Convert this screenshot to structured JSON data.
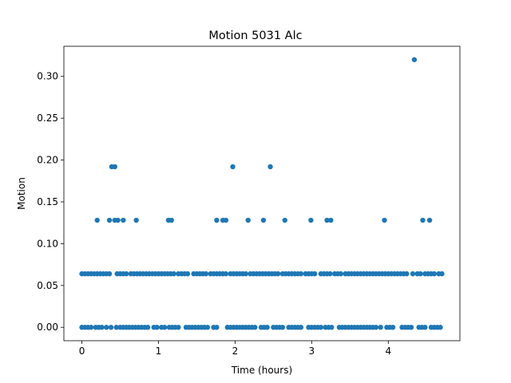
{
  "chart_data": {
    "type": "scatter",
    "title": "Motion 5031 Alc",
    "xlabel": "Time (hours)",
    "ylabel": "Motion",
    "xlim": [
      -0.235,
      4.935
    ],
    "ylim": [
      -0.016,
      0.336
    ],
    "xticks": [
      0,
      1,
      2,
      3,
      4
    ],
    "xtick_labels": [
      "0",
      "1",
      "2",
      "3",
      "4"
    ],
    "yticks": [
      0.0,
      0.05,
      0.1,
      0.15,
      0.2,
      0.25,
      0.3
    ],
    "ytick_labels": [
      "0.00",
      "0.05",
      "0.10",
      "0.15",
      "0.20",
      "0.25",
      "0.30"
    ],
    "marker_color": "#1f77b4",
    "grid": false,
    "series": [
      {
        "name": "Motion",
        "points": [
          [
            0.39,
            0.192
          ],
          [
            0.43,
            0.192
          ],
          [
            1.97,
            0.192
          ],
          [
            2.46,
            0.192
          ],
          [
            4.34,
            0.32
          ],
          [
            0.2,
            0.128
          ],
          [
            0.36,
            0.128
          ],
          [
            0.43,
            0.128
          ],
          [
            0.47,
            0.128
          ],
          [
            0.54,
            0.128
          ],
          [
            0.71,
            0.128
          ],
          [
            1.13,
            0.128
          ],
          [
            1.17,
            0.128
          ],
          [
            1.76,
            0.128
          ],
          [
            1.84,
            0.128
          ],
          [
            1.88,
            0.128
          ],
          [
            2.17,
            0.128
          ],
          [
            2.37,
            0.128
          ],
          [
            2.65,
            0.128
          ],
          [
            2.99,
            0.128
          ],
          [
            3.2,
            0.128
          ],
          [
            3.25,
            0.128
          ],
          [
            3.95,
            0.128
          ],
          [
            4.45,
            0.128
          ],
          [
            4.54,
            0.128
          ],
          [
            0.0,
            0.064
          ],
          [
            0.04,
            0.064
          ],
          [
            0.08,
            0.064
          ],
          [
            0.12,
            0.064
          ],
          [
            0.16,
            0.064
          ],
          [
            0.2,
            0.064
          ],
          [
            0.24,
            0.064
          ],
          [
            0.28,
            0.064
          ],
          [
            0.32,
            0.064
          ],
          [
            0.36,
            0.064
          ],
          [
            0.46,
            0.064
          ],
          [
            0.5,
            0.064
          ],
          [
            0.54,
            0.064
          ],
          [
            0.58,
            0.064
          ],
          [
            0.64,
            0.064
          ],
          [
            0.68,
            0.064
          ],
          [
            0.72,
            0.064
          ],
          [
            0.76,
            0.064
          ],
          [
            0.8,
            0.064
          ],
          [
            0.84,
            0.064
          ],
          [
            0.88,
            0.064
          ],
          [
            0.92,
            0.064
          ],
          [
            0.96,
            0.064
          ],
          [
            1.0,
            0.064
          ],
          [
            1.04,
            0.064
          ],
          [
            1.08,
            0.064
          ],
          [
            1.12,
            0.064
          ],
          [
            1.16,
            0.064
          ],
          [
            1.2,
            0.064
          ],
          [
            1.26,
            0.064
          ],
          [
            1.3,
            0.064
          ],
          [
            1.34,
            0.064
          ],
          [
            1.38,
            0.064
          ],
          [
            1.46,
            0.064
          ],
          [
            1.5,
            0.064
          ],
          [
            1.54,
            0.064
          ],
          [
            1.58,
            0.064
          ],
          [
            1.62,
            0.064
          ],
          [
            1.68,
            0.064
          ],
          [
            1.72,
            0.064
          ],
          [
            1.76,
            0.064
          ],
          [
            1.8,
            0.064
          ],
          [
            1.84,
            0.064
          ],
          [
            1.88,
            0.064
          ],
          [
            1.94,
            0.064
          ],
          [
            1.98,
            0.064
          ],
          [
            2.02,
            0.064
          ],
          [
            2.06,
            0.064
          ],
          [
            2.1,
            0.064
          ],
          [
            2.14,
            0.064
          ],
          [
            2.2,
            0.064
          ],
          [
            2.24,
            0.064
          ],
          [
            2.28,
            0.064
          ],
          [
            2.32,
            0.064
          ],
          [
            2.36,
            0.064
          ],
          [
            2.4,
            0.064
          ],
          [
            2.44,
            0.064
          ],
          [
            2.48,
            0.064
          ],
          [
            2.52,
            0.064
          ],
          [
            2.56,
            0.064
          ],
          [
            2.62,
            0.064
          ],
          [
            2.66,
            0.064
          ],
          [
            2.7,
            0.064
          ],
          [
            2.74,
            0.064
          ],
          [
            2.78,
            0.064
          ],
          [
            2.82,
            0.064
          ],
          [
            2.86,
            0.064
          ],
          [
            2.92,
            0.064
          ],
          [
            2.96,
            0.064
          ],
          [
            3.0,
            0.064
          ],
          [
            3.04,
            0.064
          ],
          [
            3.12,
            0.064
          ],
          [
            3.16,
            0.064
          ],
          [
            3.2,
            0.064
          ],
          [
            3.24,
            0.064
          ],
          [
            3.3,
            0.064
          ],
          [
            3.34,
            0.064
          ],
          [
            3.38,
            0.064
          ],
          [
            3.44,
            0.064
          ],
          [
            3.48,
            0.064
          ],
          [
            3.52,
            0.064
          ],
          [
            3.56,
            0.064
          ],
          [
            3.6,
            0.064
          ],
          [
            3.64,
            0.064
          ],
          [
            3.68,
            0.064
          ],
          [
            3.72,
            0.064
          ],
          [
            3.76,
            0.064
          ],
          [
            3.8,
            0.064
          ],
          [
            3.84,
            0.064
          ],
          [
            3.88,
            0.064
          ],
          [
            3.92,
            0.064
          ],
          [
            3.96,
            0.064
          ],
          [
            4.0,
            0.064
          ],
          [
            4.04,
            0.064
          ],
          [
            4.08,
            0.064
          ],
          [
            4.12,
            0.064
          ],
          [
            4.16,
            0.064
          ],
          [
            4.2,
            0.064
          ],
          [
            4.24,
            0.064
          ],
          [
            4.32,
            0.064
          ],
          [
            4.38,
            0.064
          ],
          [
            4.42,
            0.064
          ],
          [
            4.48,
            0.064
          ],
          [
            4.52,
            0.064
          ],
          [
            4.56,
            0.064
          ],
          [
            4.6,
            0.064
          ],
          [
            4.66,
            0.064
          ],
          [
            4.7,
            0.064
          ],
          [
            0.0,
            0.0
          ],
          [
            0.04,
            0.0
          ],
          [
            0.08,
            0.0
          ],
          [
            0.12,
            0.0
          ],
          [
            0.18,
            0.0
          ],
          [
            0.22,
            0.0
          ],
          [
            0.26,
            0.0
          ],
          [
            0.32,
            0.0
          ],
          [
            0.38,
            0.0
          ],
          [
            0.45,
            0.0
          ],
          [
            0.5,
            0.0
          ],
          [
            0.54,
            0.0
          ],
          [
            0.58,
            0.0
          ],
          [
            0.62,
            0.0
          ],
          [
            0.66,
            0.0
          ],
          [
            0.7,
            0.0
          ],
          [
            0.74,
            0.0
          ],
          [
            0.78,
            0.0
          ],
          [
            0.82,
            0.0
          ],
          [
            0.86,
            0.0
          ],
          [
            0.94,
            0.0
          ],
          [
            0.98,
            0.0
          ],
          [
            1.04,
            0.0
          ],
          [
            1.08,
            0.0
          ],
          [
            1.14,
            0.0
          ],
          [
            1.18,
            0.0
          ],
          [
            1.22,
            0.0
          ],
          [
            1.26,
            0.0
          ],
          [
            1.36,
            0.0
          ],
          [
            1.4,
            0.0
          ],
          [
            1.44,
            0.0
          ],
          [
            1.48,
            0.0
          ],
          [
            1.52,
            0.0
          ],
          [
            1.56,
            0.0
          ],
          [
            1.6,
            0.0
          ],
          [
            1.64,
            0.0
          ],
          [
            1.72,
            0.0
          ],
          [
            1.76,
            0.0
          ],
          [
            1.9,
            0.0
          ],
          [
            1.94,
            0.0
          ],
          [
            1.98,
            0.0
          ],
          [
            2.02,
            0.0
          ],
          [
            2.06,
            0.0
          ],
          [
            2.1,
            0.0
          ],
          [
            2.14,
            0.0
          ],
          [
            2.18,
            0.0
          ],
          [
            2.22,
            0.0
          ],
          [
            2.26,
            0.0
          ],
          [
            2.34,
            0.0
          ],
          [
            2.38,
            0.0
          ],
          [
            2.42,
            0.0
          ],
          [
            2.5,
            0.0
          ],
          [
            2.54,
            0.0
          ],
          [
            2.58,
            0.0
          ],
          [
            2.62,
            0.0
          ],
          [
            2.7,
            0.0
          ],
          [
            2.74,
            0.0
          ],
          [
            2.78,
            0.0
          ],
          [
            2.82,
            0.0
          ],
          [
            2.86,
            0.0
          ],
          [
            2.96,
            0.0
          ],
          [
            3.0,
            0.0
          ],
          [
            3.04,
            0.0
          ],
          [
            3.08,
            0.0
          ],
          [
            3.12,
            0.0
          ],
          [
            3.18,
            0.0
          ],
          [
            3.22,
            0.0
          ],
          [
            3.26,
            0.0
          ],
          [
            3.36,
            0.0
          ],
          [
            3.4,
            0.0
          ],
          [
            3.44,
            0.0
          ],
          [
            3.48,
            0.0
          ],
          [
            3.52,
            0.0
          ],
          [
            3.56,
            0.0
          ],
          [
            3.6,
            0.0
          ],
          [
            3.64,
            0.0
          ],
          [
            3.68,
            0.0
          ],
          [
            3.72,
            0.0
          ],
          [
            3.76,
            0.0
          ],
          [
            3.8,
            0.0
          ],
          [
            3.84,
            0.0
          ],
          [
            3.9,
            0.0
          ],
          [
            3.98,
            0.0
          ],
          [
            4.02,
            0.0
          ],
          [
            4.06,
            0.0
          ],
          [
            4.18,
            0.0
          ],
          [
            4.22,
            0.0
          ],
          [
            4.26,
            0.0
          ],
          [
            4.3,
            0.0
          ],
          [
            4.4,
            0.0
          ],
          [
            4.44,
            0.0
          ],
          [
            4.48,
            0.0
          ],
          [
            4.56,
            0.0
          ],
          [
            4.6,
            0.0
          ],
          [
            4.64,
            0.0
          ],
          [
            4.68,
            0.0
          ]
        ]
      }
    ]
  }
}
